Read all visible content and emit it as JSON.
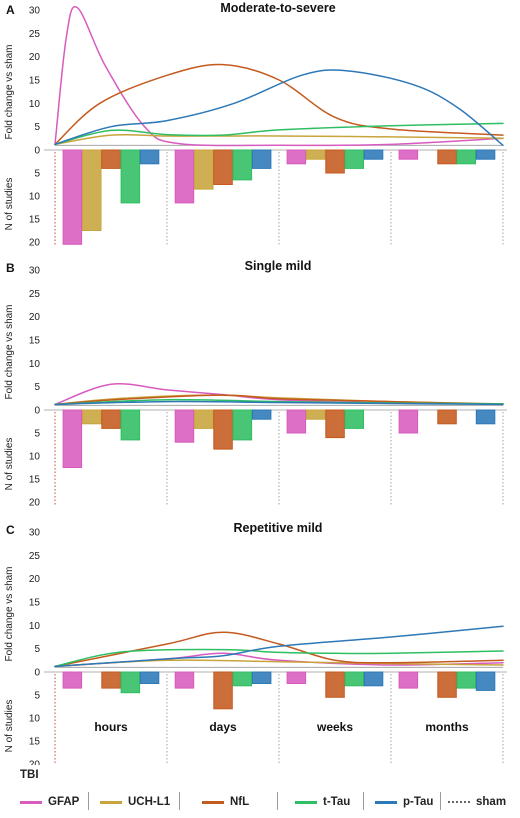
{
  "x_categories": [
    "hours",
    "days",
    "weeks",
    "months"
  ],
  "colors": {
    "GFAP": "#d85bbf",
    "UCH-L1": "#c8a43c",
    "NfL": "#c45a1e",
    "t-Tau": "#2fbe62",
    "p-Tau": "#2d78b7",
    "sham": "#666666"
  },
  "legend": {
    "group_label": "TBI",
    "items": [
      {
        "key": "GFAP",
        "label": "GFAP"
      },
      {
        "key": "UCH-L1",
        "label": "UCH-L1"
      },
      {
        "key": "NfL",
        "label": "NfL"
      },
      {
        "key": "t-Tau",
        "label": "t-Tau"
      },
      {
        "key": "p-Tau",
        "label": "p-Tau"
      },
      {
        "key": "sham",
        "label": "sham"
      }
    ]
  },
  "chart_data": [
    {
      "type": "line+bar",
      "panel": "A",
      "title": "Moderate-to-severe",
      "ylabel_upper": "Fold change vs sham",
      "ylabel_lower": "N of studies",
      "upper_ticks": [
        "30",
        "25",
        "20",
        "15",
        "10",
        "5",
        "0"
      ],
      "lower_ticks": [
        "5",
        "10",
        "15",
        "20"
      ],
      "ylim_upper": [
        0,
        30
      ],
      "ylim_lower": [
        0,
        20
      ],
      "show_x_labels": false,
      "lines": [
        {
          "name": "GFAP",
          "points": [
            [
              0,
              1.2
            ],
            [
              0.1,
              24
            ],
            [
              0.2,
              30.5
            ],
            [
              0.45,
              18
            ],
            [
              0.8,
              5
            ],
            [
              1.1,
              1.4
            ],
            [
              2,
              1
            ],
            [
              3,
              1.2
            ],
            [
              4,
              2.5
            ]
          ]
        },
        {
          "name": "UCH-L1",
          "points": [
            [
              0,
              1.2
            ],
            [
              0.5,
              3.2
            ],
            [
              1,
              3
            ],
            [
              1.5,
              3
            ],
            [
              2,
              3
            ],
            [
              3,
              2.8
            ],
            [
              4,
              2.5
            ]
          ]
        },
        {
          "name": "NfL",
          "points": [
            [
              0,
              1.2
            ],
            [
              0.4,
              10
            ],
            [
              1,
              16
            ],
            [
              1.5,
              18.3
            ],
            [
              2,
              15
            ],
            [
              2.5,
              7
            ],
            [
              3,
              4.5
            ],
            [
              4,
              3.2
            ]
          ]
        },
        {
          "name": "t-Tau",
          "points": [
            [
              0,
              1.2
            ],
            [
              0.5,
              4.2
            ],
            [
              1,
              3.3
            ],
            [
              1.5,
              3.2
            ],
            [
              2,
              4.3
            ],
            [
              3,
              5.2
            ],
            [
              4,
              5.7
            ]
          ]
        },
        {
          "name": "p-Tau",
          "points": [
            [
              0,
              1.2
            ],
            [
              0.5,
              5
            ],
            [
              1,
              6.3
            ],
            [
              1.6,
              10
            ],
            [
              2.2,
              16
            ],
            [
              2.6,
              17
            ],
            [
              3.2,
              14
            ],
            [
              3.6,
              9
            ],
            [
              4,
              1
            ]
          ]
        }
      ],
      "bars": [
        {
          "category": "hours",
          "values": {
            "GFAP": 20.5,
            "UCH-L1": 17.5,
            "NfL": 4,
            "t-Tau": 11.5,
            "p-Tau": 3
          }
        },
        {
          "category": "days",
          "values": {
            "GFAP": 11.5,
            "UCH-L1": 8.5,
            "NfL": 7.5,
            "t-Tau": 6.5,
            "p-Tau": 4
          }
        },
        {
          "category": "weeks",
          "values": {
            "GFAP": 3,
            "UCH-L1": 2,
            "NfL": 5,
            "t-Tau": 4,
            "p-Tau": 2
          }
        },
        {
          "category": "months",
          "values": {
            "GFAP": 2,
            "UCH-L1": 0,
            "NfL": 3,
            "t-Tau": 3,
            "p-Tau": 2
          }
        }
      ]
    },
    {
      "type": "line+bar",
      "panel": "B",
      "title": "Single mild",
      "ylabel_upper": "Fold change vs sham",
      "ylabel_lower": "N of studies",
      "upper_ticks": [
        "30",
        "25",
        "20",
        "15",
        "10",
        "5",
        "0"
      ],
      "lower_ticks": [
        "5",
        "10",
        "15",
        "20"
      ],
      "ylim_upper": [
        0,
        30
      ],
      "ylim_lower": [
        0,
        20
      ],
      "show_x_labels": false,
      "lines": [
        {
          "name": "GFAP",
          "points": [
            [
              0,
              1.2
            ],
            [
              0.5,
              5.5
            ],
            [
              1,
              4.3
            ],
            [
              1.5,
              3.3
            ],
            [
              2,
              2.2
            ],
            [
              3,
              1.5
            ],
            [
              4,
              1.3
            ]
          ]
        },
        {
          "name": "UCH-L1",
          "points": [
            [
              0,
              1.2
            ],
            [
              0.6,
              2.5
            ],
            [
              1.4,
              3.2
            ],
            [
              2,
              2.6
            ],
            [
              3,
              1.8
            ],
            [
              4,
              1.3
            ]
          ]
        },
        {
          "name": "NfL",
          "points": [
            [
              0,
              1.2
            ],
            [
              0.6,
              2.3
            ],
            [
              1.5,
              3.2
            ],
            [
              2,
              2.4
            ],
            [
              3,
              1.8
            ],
            [
              4,
              1.2
            ]
          ]
        },
        {
          "name": "t-Tau",
          "points": [
            [
              0,
              1.2
            ],
            [
              1,
              2.2
            ],
            [
              2,
              1.8
            ],
            [
              3,
              1.5
            ],
            [
              4,
              1.3
            ]
          ]
        },
        {
          "name": "p-Tau",
          "points": [
            [
              0,
              1.2
            ],
            [
              1,
              1.8
            ],
            [
              2,
              1.6
            ],
            [
              3,
              1.4
            ],
            [
              4,
              1.2
            ]
          ]
        }
      ],
      "bars": [
        {
          "category": "hours",
          "values": {
            "GFAP": 12.5,
            "UCH-L1": 3,
            "NfL": 4,
            "t-Tau": 6.5,
            "p-Tau": 0
          }
        },
        {
          "category": "days",
          "values": {
            "GFAP": 7,
            "UCH-L1": 4,
            "NfL": 8.5,
            "t-Tau": 6.5,
            "p-Tau": 2
          }
        },
        {
          "category": "weeks",
          "values": {
            "GFAP": 5,
            "UCH-L1": 2,
            "NfL": 6,
            "t-Tau": 4,
            "p-Tau": 0
          }
        },
        {
          "category": "months",
          "values": {
            "GFAP": 5,
            "UCH-L1": 0,
            "NfL": 3,
            "t-Tau": 0,
            "p-Tau": 3
          }
        }
      ]
    },
    {
      "type": "line+bar",
      "panel": "C",
      "title": "Repetitive mild",
      "ylabel_upper": "Fold change vs sham",
      "ylabel_lower": "N of studies",
      "upper_ticks": [
        "30",
        "25",
        "20",
        "15",
        "10",
        "5",
        "0"
      ],
      "lower_ticks": [
        "5",
        "10",
        "15",
        "20"
      ],
      "ylim_upper": [
        0,
        30
      ],
      "ylim_lower": [
        0,
        20
      ],
      "show_x_labels": true,
      "lines": [
        {
          "name": "GFAP",
          "points": [
            [
              0,
              1.2
            ],
            [
              1,
              2.8
            ],
            [
              1.5,
              4
            ],
            [
              2,
              2.5
            ],
            [
              3,
              1.5
            ],
            [
              4,
              2
            ]
          ]
        },
        {
          "name": "UCH-L1",
          "points": [
            [
              0,
              1.2
            ],
            [
              1,
              2.5
            ],
            [
              2,
              2.2
            ],
            [
              3,
              1.8
            ],
            [
              4,
              1.5
            ]
          ]
        },
        {
          "name": "NfL",
          "points": [
            [
              0,
              1.2
            ],
            [
              1,
              6
            ],
            [
              1.5,
              8.5
            ],
            [
              2,
              6
            ],
            [
              2.5,
              2.5
            ],
            [
              3,
              2
            ],
            [
              4,
              2.5
            ]
          ]
        },
        {
          "name": "t-Tau",
          "points": [
            [
              0,
              1.2
            ],
            [
              0.6,
              4.3
            ],
            [
              1.5,
              4.8
            ],
            [
              2,
              4.2
            ],
            [
              2.5,
              4
            ],
            [
              3,
              4
            ],
            [
              4,
              4.5
            ]
          ]
        },
        {
          "name": "p-Tau",
          "points": [
            [
              0,
              1.2
            ],
            [
              1,
              2.8
            ],
            [
              1.5,
              3.5
            ],
            [
              2,
              5.5
            ],
            [
              3,
              7.5
            ],
            [
              4,
              9.8
            ]
          ]
        }
      ],
      "bars": [
        {
          "category": "hours",
          "values": {
            "GFAP": 3.5,
            "UCH-L1": 0,
            "NfL": 3.5,
            "t-Tau": 4.5,
            "p-Tau": 2.5
          }
        },
        {
          "category": "days",
          "values": {
            "GFAP": 3.5,
            "UCH-L1": 0,
            "NfL": 8,
            "t-Tau": 3,
            "p-Tau": 2.5
          }
        },
        {
          "category": "weeks",
          "values": {
            "GFAP": 2.5,
            "UCH-L1": 0,
            "NfL": 5.5,
            "t-Tau": 3,
            "p-Tau": 3
          }
        },
        {
          "category": "months",
          "values": {
            "GFAP": 3.5,
            "UCH-L1": 0,
            "NfL": 5.5,
            "t-Tau": 3.5,
            "p-Tau": 4
          }
        }
      ]
    }
  ]
}
